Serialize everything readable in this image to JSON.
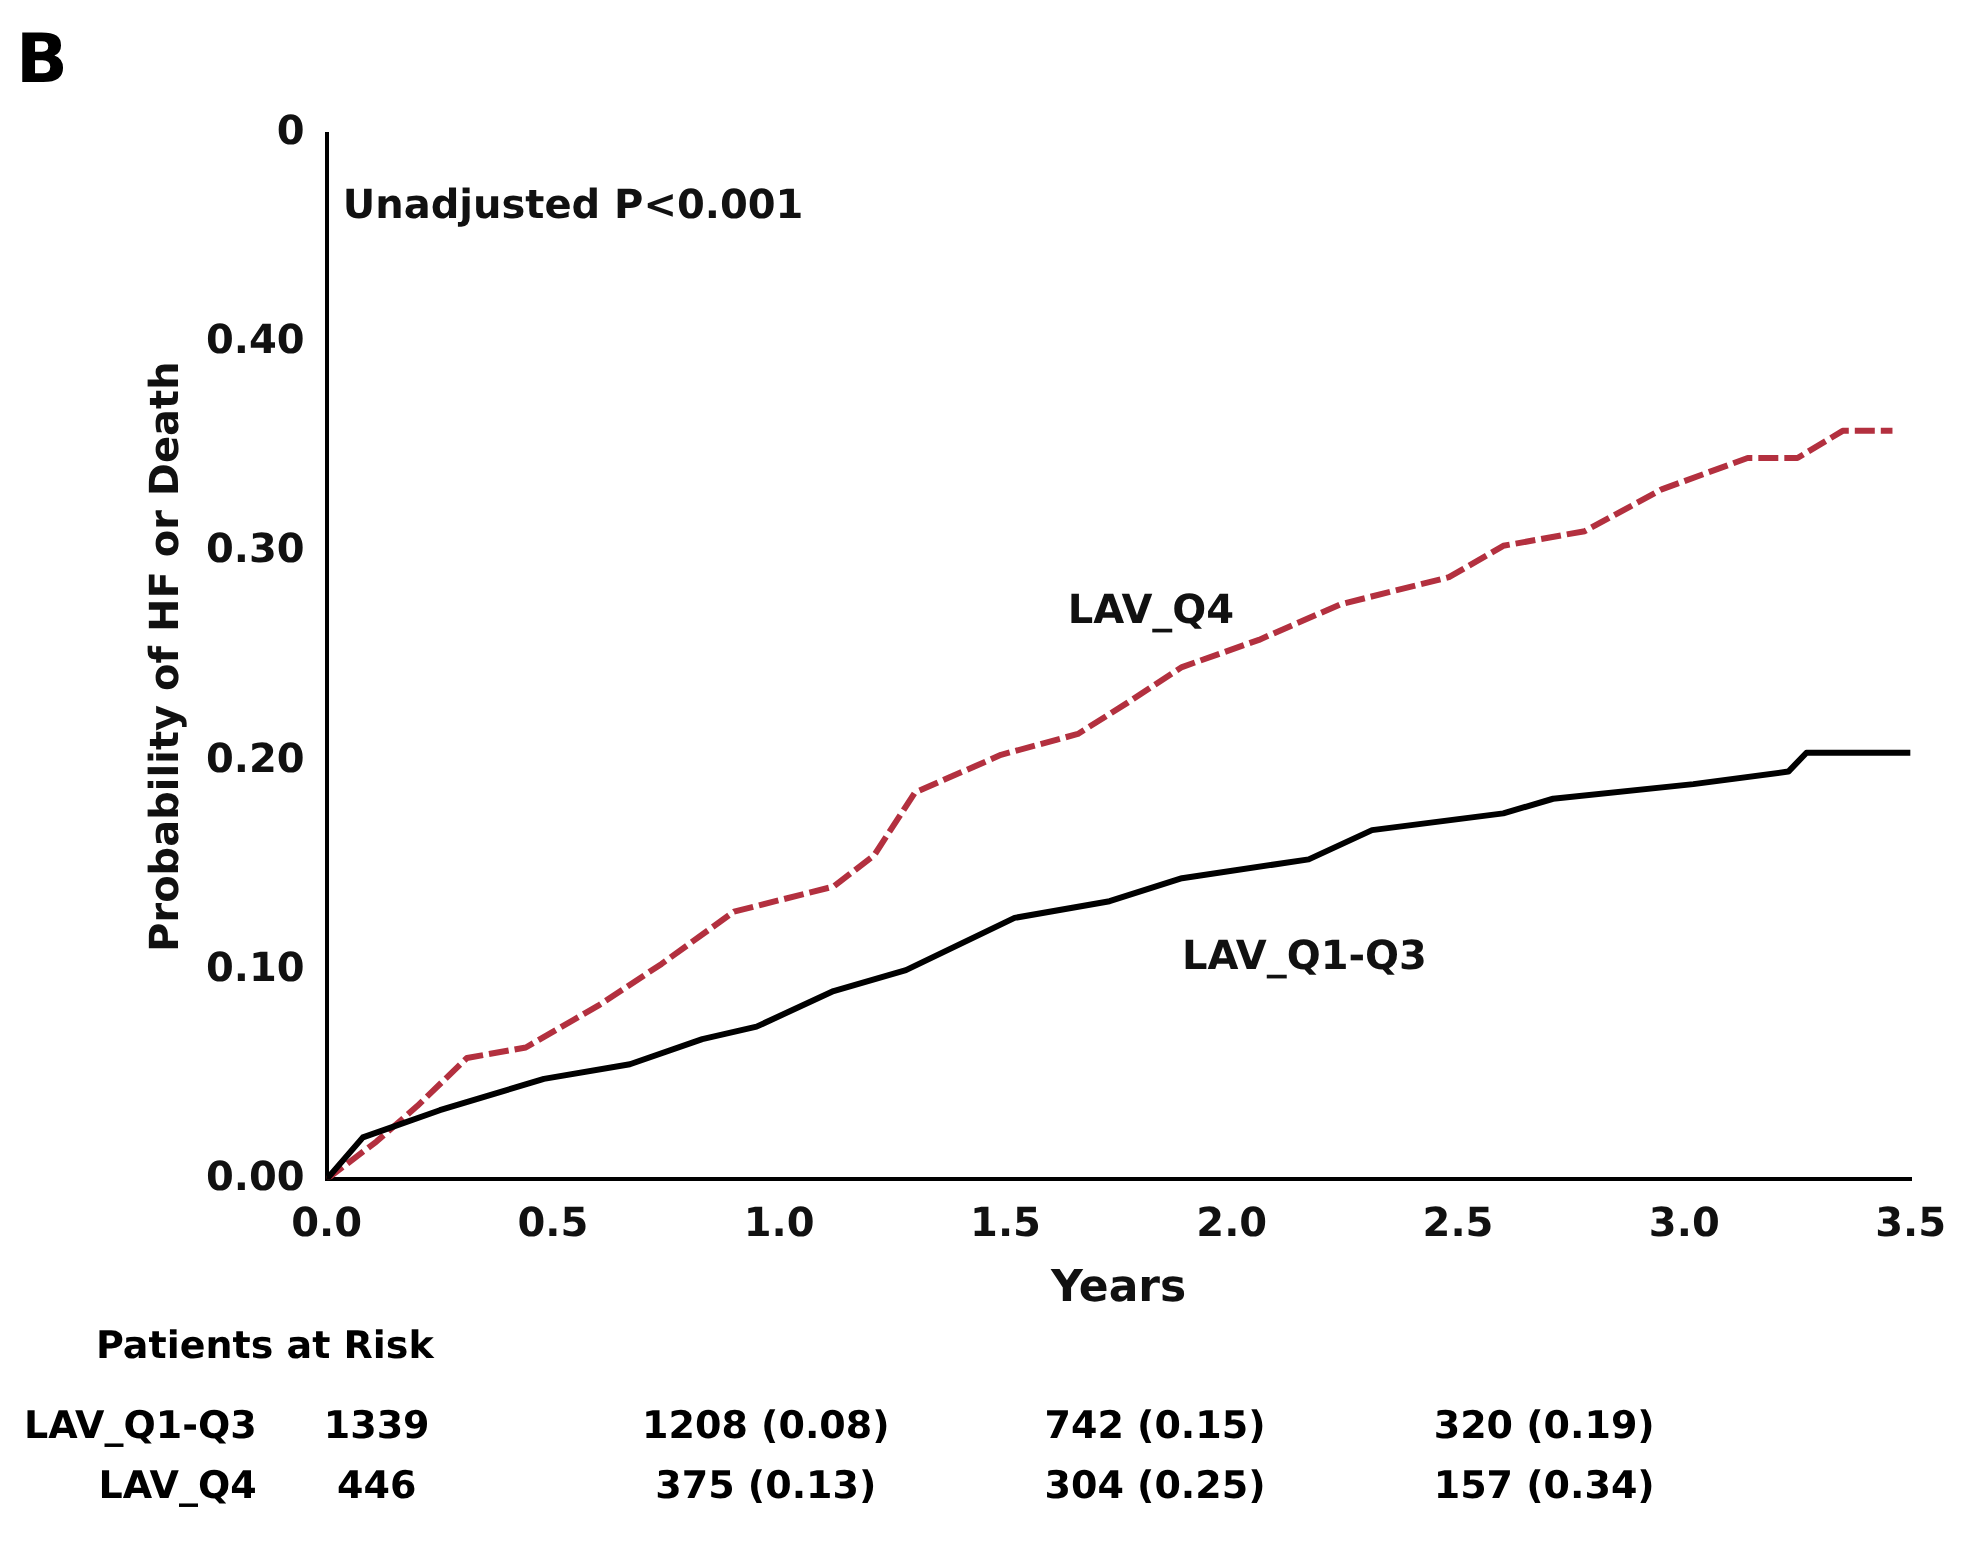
{
  "chart_data": {
    "type": "line",
    "title": "B",
    "xlabel": "Years",
    "ylabel": "Probability of HF or Death",
    "xlim": [
      0,
      3.5
    ],
    "xticks": [
      {
        "value": 0,
        "label": "0.0"
      },
      {
        "value": 0.5,
        "label": "0.5"
      },
      {
        "value": 1,
        "label": "1.0"
      },
      {
        "value": 1.5,
        "label": "1.5"
      },
      {
        "value": 2,
        "label": "2.0"
      },
      {
        "value": 2.5,
        "label": "2.5"
      },
      {
        "value": 3,
        "label": "3.0"
      },
      {
        "value": 3.5,
        "label": "3.5"
      }
    ],
    "ylim": [
      0,
      0.5
    ],
    "yticks": [
      {
        "value": 0,
        "label": "0.00"
      },
      {
        "value": 0.1,
        "label": "0.10"
      },
      {
        "value": 0.2,
        "label": "0.20"
      },
      {
        "value": 0.3,
        "label": "0.30"
      },
      {
        "value": 0.4,
        "label": "0.40"
      },
      {
        "value": 0.5,
        "label": "0"
      }
    ],
    "grid": false,
    "legend": false,
    "marker": "none",
    "series": [
      {
        "name": "LAV_Q1-Q3",
        "color": "#000000",
        "line_style": "solid",
        "x": [
          0,
          0.08,
          0.25,
          0.48,
          0.67,
          0.83,
          0.95,
          1.12,
          1.28,
          1.52,
          1.73,
          1.89,
          2.17,
          2.31,
          2.6,
          2.71,
          3.02,
          3.23,
          3.27,
          3.5
        ],
        "values": [
          0,
          0.02,
          0.033,
          0.048,
          0.055,
          0.067,
          0.073,
          0.09,
          0.1,
          0.125,
          0.133,
          0.144,
          0.153,
          0.167,
          0.175,
          0.182,
          0.189,
          0.195,
          0.204,
          0.204
        ]
      },
      {
        "name": "LAV_Q4",
        "color": "#b3303f",
        "line_style": "dashed",
        "x": [
          0,
          0.11,
          0.2,
          0.31,
          0.44,
          0.6,
          0.74,
          0.9,
          1.12,
          1.21,
          1.3,
          1.49,
          1.66,
          1.77,
          1.89,
          2.06,
          2.24,
          2.48,
          2.6,
          2.78,
          2.95,
          3.14,
          3.25,
          3.35,
          3.46
        ],
        "values": [
          0,
          0.018,
          0.035,
          0.058,
          0.063,
          0.083,
          0.103,
          0.128,
          0.14,
          0.155,
          0.185,
          0.203,
          0.213,
          0.228,
          0.245,
          0.258,
          0.275,
          0.288,
          0.303,
          0.31,
          0.33,
          0.345,
          0.345,
          0.358,
          0.358
        ]
      }
    ],
    "annotations": [
      "Unadjusted P<0.001",
      "Patients at Risk",
      "1339",
      "1208 (0.08)",
      "742 (0.15)",
      "320 (0.19)",
      "446",
      "375 (0.13)",
      "304 (0.25)",
      "157 (0.34)"
    ]
  }
}
